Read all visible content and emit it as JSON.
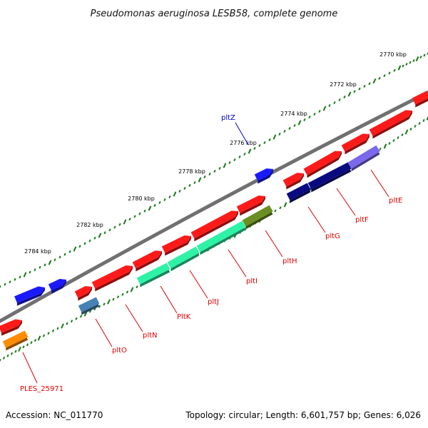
{
  "title": "Pseudomonas aeruginosa LESB58, complete genome",
  "footer": {
    "accession": "Accession: NC_011770",
    "summary": "Topology: circular; Length: 6,601,757 bp; Genes: 6,026"
  },
  "axis_ticks": [
    "2770 kbp",
    "2772 kbp",
    "2774 kbp",
    "2776 kbp",
    "2778 kbp",
    "2780 kbp",
    "2782 kbp",
    "2784 kbp"
  ],
  "gene_labels": [
    "pltZ",
    "pltE",
    "pltF",
    "pltG",
    "pltH",
    "pltI",
    "pltJ",
    "PltK",
    "pltN",
    "pltO",
    "PLES_25971"
  ],
  "colors": {
    "backbone": "#808080",
    "forward_strand": "#ff1a1a",
    "regulator": "#1a1aff",
    "dark_navy": "#0a0a80",
    "lavender": "#7b68ee",
    "aquamarine": "#2ef2a6",
    "olive": "#6b8e23",
    "steel_blue": "#4682b4",
    "orange": "#ff8c00",
    "tick": "#1a7a1a",
    "label_red": "#e00000",
    "label_blue": "#0000cc"
  }
}
